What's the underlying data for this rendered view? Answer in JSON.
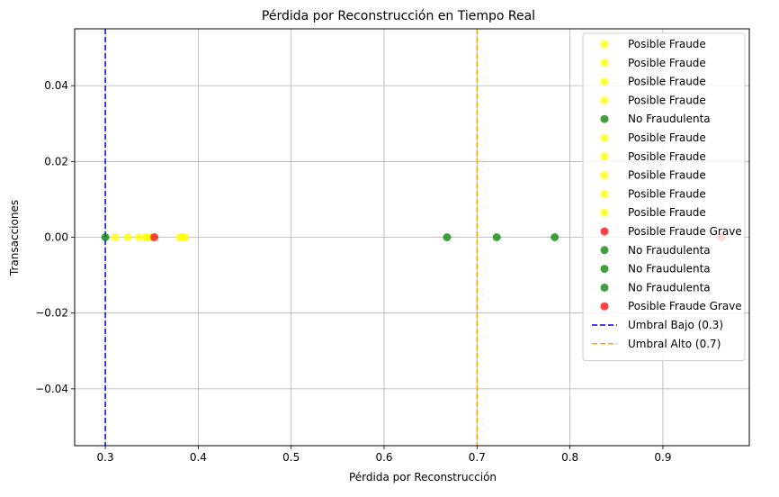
{
  "chart_data": {
    "type": "scatter",
    "title": "Pérdida por Reconstrucción en Tiempo Real",
    "xlabel": "Pérdida por Reconstrucción",
    "ylabel": "Transacciones",
    "xlim": [
      0.267,
      0.993
    ],
    "ylim": [
      -0.055,
      0.055
    ],
    "xticks": [
      0.3,
      0.4,
      0.5,
      0.6,
      0.7,
      0.8,
      0.9
    ],
    "xtick_labels": [
      "0.3",
      "0.4",
      "0.5",
      "0.6",
      "0.7",
      "0.8",
      "0.9"
    ],
    "yticks": [
      0.04,
      0.02,
      0.0,
      -0.02,
      -0.04
    ],
    "ytick_labels": [
      "0.04",
      "0.02",
      "0.00",
      "−0.02",
      "−0.04"
    ],
    "grid": true,
    "legend_position": "top-right",
    "colors": {
      "Posible Fraude": "#ffff00",
      "No Fraudulenta": "#008000",
      "Posible Fraude Grave": "#ff0000",
      "low_threshold": "#0000ff",
      "high_threshold": "#ffa500"
    },
    "points": [
      {
        "x": 0.3105,
        "y": 0.0,
        "category": "Posible Fraude"
      },
      {
        "x": 0.3243,
        "y": 0.0,
        "category": "Posible Fraude"
      },
      {
        "x": 0.3363,
        "y": 0.0,
        "category": "Posible Fraude"
      },
      {
        "x": 0.3435,
        "y": 0.0,
        "category": "Posible Fraude"
      },
      {
        "x": 0.3,
        "y": 0.0,
        "category": "No Fraudulenta"
      },
      {
        "x": 0.3479,
        "y": 0.0,
        "category": "Posible Fraude"
      },
      {
        "x": 0.38,
        "y": 0.0,
        "category": "Posible Fraude"
      },
      {
        "x": 0.3832,
        "y": 0.0,
        "category": "Posible Fraude"
      },
      {
        "x": 0.3857,
        "y": 0.0,
        "category": "Posible Fraude"
      },
      {
        "x": 0.3459,
        "y": 0.0,
        "category": "Posible Fraude"
      },
      {
        "x": 0.3527,
        "y": 0.0,
        "category": "Posible Fraude Grave"
      },
      {
        "x": 0.6677,
        "y": 0.0,
        "category": "No Fraudulenta"
      },
      {
        "x": 0.7212,
        "y": 0.0,
        "category": "No Fraudulenta"
      },
      {
        "x": 0.7836,
        "y": 0.0,
        "category": "No Fraudulenta"
      },
      {
        "x": 0.963,
        "y": 0.0,
        "category": "Posible Fraude Grave"
      }
    ],
    "thresholds": [
      {
        "x": 0.3,
        "label": "Umbral Bajo (0.3)",
        "color": "#0000ff"
      },
      {
        "x": 0.7,
        "label": "Umbral Alto (0.7)",
        "color": "#ffa500"
      }
    ],
    "legend": [
      {
        "label": "Posible Fraude",
        "kind": "marker",
        "color": "#ffff00"
      },
      {
        "label": "Posible Fraude",
        "kind": "marker",
        "color": "#ffff00"
      },
      {
        "label": "Posible Fraude",
        "kind": "marker",
        "color": "#ffff00"
      },
      {
        "label": "Posible Fraude",
        "kind": "marker",
        "color": "#ffff00"
      },
      {
        "label": "No Fraudulenta",
        "kind": "marker",
        "color": "#008000"
      },
      {
        "label": "Posible Fraude",
        "kind": "marker",
        "color": "#ffff00"
      },
      {
        "label": "Posible Fraude",
        "kind": "marker",
        "color": "#ffff00"
      },
      {
        "label": "Posible Fraude",
        "kind": "marker",
        "color": "#ffff00"
      },
      {
        "label": "Posible Fraude",
        "kind": "marker",
        "color": "#ffff00"
      },
      {
        "label": "Posible Fraude",
        "kind": "marker",
        "color": "#ffff00"
      },
      {
        "label": "Posible Fraude Grave",
        "kind": "marker",
        "color": "#ff0000"
      },
      {
        "label": "No Fraudulenta",
        "kind": "marker",
        "color": "#008000"
      },
      {
        "label": "No Fraudulenta",
        "kind": "marker",
        "color": "#008000"
      },
      {
        "label": "No Fraudulenta",
        "kind": "marker",
        "color": "#008000"
      },
      {
        "label": "Posible Fraude Grave",
        "kind": "marker",
        "color": "#ff0000"
      },
      {
        "label": "Umbral Bajo (0.3)",
        "kind": "line",
        "color": "#0000ff"
      },
      {
        "label": "Umbral Alto (0.7)",
        "kind": "line",
        "color": "#ffa500"
      }
    ]
  }
}
